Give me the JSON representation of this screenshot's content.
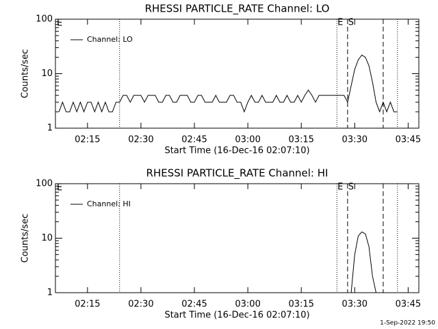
{
  "chart_data": [
    {
      "type": "line",
      "title": "RHESSI PARTICLE_RATE Channel: LO",
      "xlabel": "Start Time (16-Dec-16 02:07:10)",
      "ylabel": "Counts/sec",
      "log_y": true,
      "ylim": [
        1,
        100
      ],
      "yticks": [
        1,
        10,
        100
      ],
      "xlim": [
        "02:06",
        "03:48"
      ],
      "xticks": [
        "02:15",
        "02:30",
        "02:45",
        "03:00",
        "03:15",
        "03:30",
        "03:45"
      ],
      "legend": "upper left",
      "corner_label": "E",
      "markers": [
        {
          "x": "02:24",
          "style": "dotted"
        },
        {
          "x": "03:25",
          "style": "dotted",
          "label": "E"
        },
        {
          "x": "03:28",
          "style": "dashed",
          "label": "S"
        },
        {
          "x": "03:38",
          "style": "dashed"
        },
        {
          "x": "03:42",
          "style": "dotted"
        }
      ],
      "x": [
        "02:07",
        "02:08",
        "02:09",
        "02:10",
        "02:11",
        "02:12",
        "02:13",
        "02:14",
        "02:15",
        "02:16",
        "02:17",
        "02:18",
        "02:19",
        "02:20",
        "02:21",
        "02:22",
        "02:23",
        "02:24",
        "02:25",
        "02:26",
        "02:27",
        "02:28",
        "02:29",
        "02:30",
        "02:31",
        "02:32",
        "02:33",
        "02:34",
        "02:35",
        "02:36",
        "02:37",
        "02:38",
        "02:39",
        "02:40",
        "02:41",
        "02:42",
        "02:43",
        "02:44",
        "02:45",
        "02:46",
        "02:47",
        "02:48",
        "02:49",
        "02:50",
        "02:51",
        "02:52",
        "02:53",
        "02:54",
        "02:55",
        "02:56",
        "02:57",
        "02:58",
        "02:59",
        "03:00",
        "03:01",
        "03:02",
        "03:03",
        "03:04",
        "03:05",
        "03:06",
        "03:07",
        "03:08",
        "03:09",
        "03:10",
        "03:11",
        "03:12",
        "03:13",
        "03:14",
        "03:15",
        "03:16",
        "03:17",
        "03:18",
        "03:19",
        "03:20",
        "03:21",
        "03:22",
        "03:23",
        "03:24",
        "03:25",
        "03:26",
        "03:27",
        "03:28",
        "03:29",
        "03:30",
        "03:31",
        "03:32",
        "03:33",
        "03:34",
        "03:35",
        "03:36",
        "03:37",
        "03:38",
        "03:39",
        "03:40",
        "03:41",
        "03:42"
      ],
      "series": [
        {
          "name": "Channel: LO",
          "color": "#000000",
          "values": [
            2,
            3,
            2,
            2,
            3,
            2,
            3,
            2,
            3,
            3,
            2,
            3,
            2,
            3,
            2,
            2,
            3,
            3,
            4,
            4,
            3,
            4,
            4,
            4,
            3,
            4,
            4,
            4,
            3,
            3,
            4,
            4,
            3,
            3,
            4,
            4,
            4,
            3,
            3,
            4,
            4,
            3,
            3,
            3,
            4,
            3,
            3,
            3,
            4,
            4,
            3,
            3,
            2,
            3,
            4,
            3,
            3,
            4,
            3,
            3,
            3,
            4,
            3,
            3,
            4,
            3,
            3,
            4,
            3,
            4,
            5,
            4,
            3,
            4,
            4,
            4,
            4,
            4,
            4,
            4,
            4,
            3,
            6,
            12,
            18,
            22,
            20,
            14,
            7,
            3,
            2,
            3,
            2,
            3,
            2,
            2
          ]
        }
      ]
    },
    {
      "type": "line",
      "title": "RHESSI PARTICLE_RATE Channel: HI",
      "xlabel": "Start Time (16-Dec-16 02:07:10)",
      "ylabel": "Counts/sec",
      "log_y": true,
      "ylim": [
        1,
        100
      ],
      "yticks": [
        1,
        10,
        100
      ],
      "xlim": [
        "02:06",
        "03:48"
      ],
      "xticks": [
        "02:15",
        "02:30",
        "02:45",
        "03:00",
        "03:15",
        "03:30",
        "03:45"
      ],
      "legend": "upper left",
      "corner_label": "E",
      "markers": [
        {
          "x": "02:24",
          "style": "dotted"
        },
        {
          "x": "03:25",
          "style": "dotted",
          "label": "E"
        },
        {
          "x": "03:28",
          "style": "dashed",
          "label": "S"
        },
        {
          "x": "03:38",
          "style": "dashed"
        },
        {
          "x": "03:42",
          "style": "dotted"
        }
      ],
      "x": [
        "03:29",
        "03:30",
        "03:31",
        "03:32",
        "03:33",
        "03:34",
        "03:35",
        "03:36"
      ],
      "series": [
        {
          "name": "Channel: HI",
          "color": "#000000",
          "values": [
            1,
            5,
            11,
            13,
            12,
            7,
            2,
            1
          ]
        }
      ]
    }
  ],
  "footer": "1-Sep-2022 19:50"
}
